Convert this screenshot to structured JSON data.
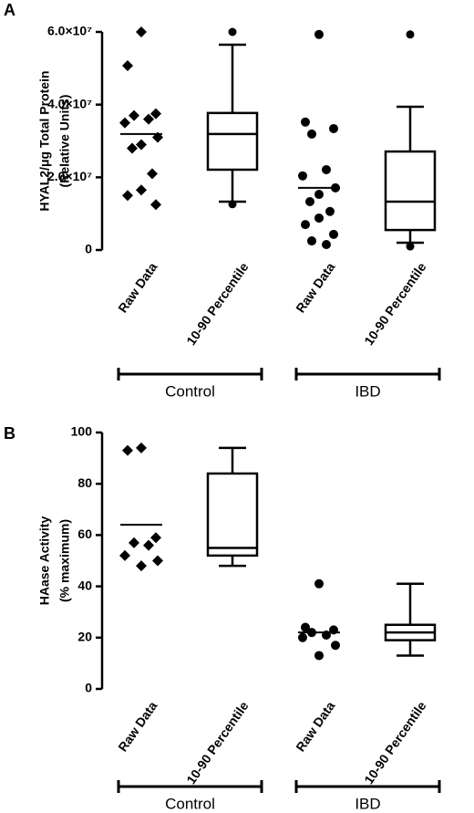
{
  "chart_data": [
    {
      "type": "box",
      "panel": "A",
      "ylabel": [
        "HYAL2/μg Total Protein",
        "(Relative Units)"
      ],
      "categories": [
        "Raw Data",
        "10-90 Percentile",
        "Raw Data",
        "10-90 Percentile"
      ],
      "ylim": [
        0,
        60000000
      ],
      "yticks": [
        0,
        {
          "value": 20000000,
          "label": "2.0×10⁷"
        },
        {
          "value": 40000000,
          "label": "4.0×10⁷"
        },
        {
          "value": 60000000,
          "label": "6.0×10⁷"
        }
      ],
      "color": "#000000",
      "series": [
        {
          "name": "Control",
          "marker": "diamond",
          "raw": [
            60000000,
            50700000,
            37500000,
            37000000,
            36000000,
            35000000,
            31000000,
            29000000,
            28000000,
            21000000,
            16500000,
            15000000,
            12500000
          ],
          "mean": 31900000,
          "box": {
            "whisker_low": 13300000,
            "q1": 22100000,
            "median": 31900000,
            "q3": 37700000,
            "whisker_high": 56500000
          },
          "outliers": [
            60000000,
            12600000
          ]
        },
        {
          "name": "IBD",
          "marker": "circle",
          "raw": [
            59300000,
            35200000,
            33400000,
            31900000,
            22100000,
            20400000,
            17100000,
            15300000,
            13300000,
            10600000,
            8800000,
            7000000,
            4300000,
            2500000,
            1500000
          ],
          "mean": 17100000,
          "box": {
            "whisker_low": 2000000,
            "q1": 5500000,
            "median": 13300000,
            "q3": 27100000,
            "whisker_high": 39400000
          },
          "outliers": [
            59300000,
            1000000
          ]
        }
      ]
    },
    {
      "type": "box",
      "panel": "B",
      "ylabel": [
        "HAase Activity",
        "(% maximum)"
      ],
      "categories": [
        "Raw Data",
        "10-90 Percentile",
        "Raw Data",
        "10-90 Percentile"
      ],
      "ylim": [
        0,
        100
      ],
      "yticks": [
        0,
        20,
        40,
        60,
        80,
        100
      ],
      "color": "#000000",
      "series": [
        {
          "name": "Control",
          "marker": "diamond",
          "raw": [
            94,
            93,
            59,
            57,
            56,
            52,
            50,
            48
          ],
          "mean": 64,
          "box": {
            "whisker_low": 48,
            "q1": 52,
            "median": 55,
            "q3": 84,
            "whisker_high": 94
          }
        },
        {
          "name": "IBD",
          "marker": "circle",
          "raw": [
            41,
            24,
            23,
            22,
            21,
            20,
            17,
            13
          ],
          "mean": 22,
          "box": {
            "whisker_low": 13,
            "q1": 19,
            "median": 22,
            "q3": 25,
            "whisker_high": 41
          }
        }
      ]
    }
  ]
}
